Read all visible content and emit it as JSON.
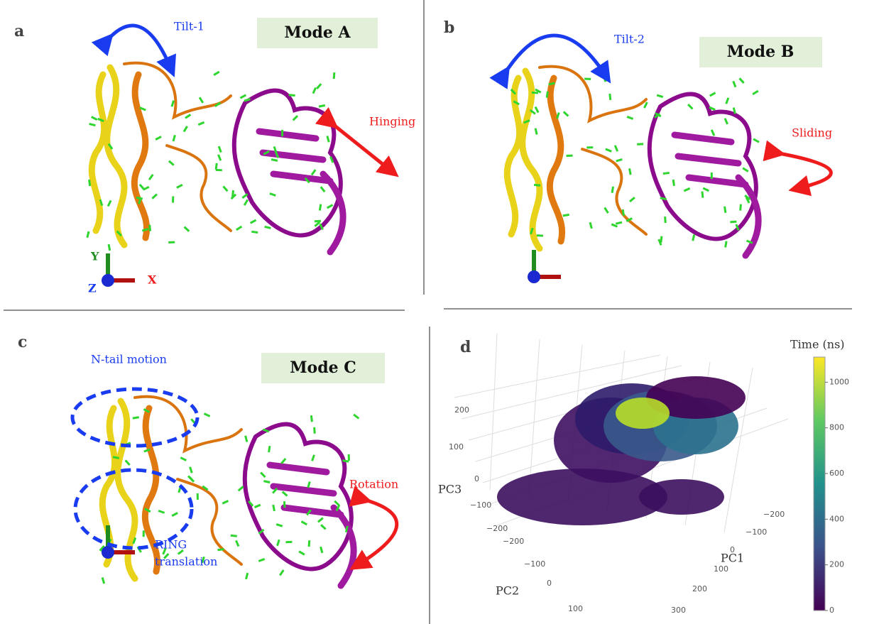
{
  "panels": [
    {
      "label": "a",
      "mode": "Mode A",
      "annotations": [
        "Tilt-1",
        "Hinging"
      ],
      "axes": [
        "Y",
        "Z",
        "X"
      ]
    },
    {
      "label": "b",
      "mode": "Mode B",
      "annotations": [
        "Tilt-2",
        "Sliding"
      ]
    },
    {
      "label": "c",
      "mode": "Mode C",
      "annotations": [
        "N-tail motion",
        "RING",
        "translation",
        "Rotation"
      ]
    },
    {
      "label": "d",
      "colorbar_title": "Time (ns)",
      "colorbar_range": [
        0,
        1110
      ],
      "colorbar_ticks": [
        0,
        200,
        400,
        600,
        800,
        1000
      ],
      "axis_titles": [
        "PC1",
        "PC2",
        "PC3"
      ],
      "pc3_ticks": [
        "200",
        "100",
        "0",
        "−100",
        "−200"
      ],
      "pc2_ticks": [
        "−200",
        "−100",
        "0",
        "100"
      ],
      "pc1_ticks": [
        "−200",
        "−100",
        "0",
        "100",
        "200",
        "300"
      ]
    }
  ]
}
